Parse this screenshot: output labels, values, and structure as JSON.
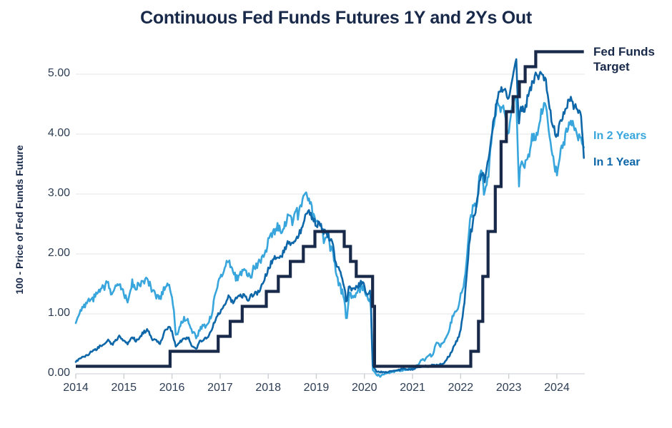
{
  "chart_data": {
    "type": "line",
    "title": "Continuous Fed Funds Futures 1Y and 2Ys Out",
    "ylabel": "100 - Price of Fed Funds Future",
    "x_ticks": [
      "2014",
      "2015",
      "2016",
      "2017",
      "2018",
      "2019",
      "2020",
      "2021",
      "2022",
      "2023",
      "2024"
    ],
    "y_ticks": [
      "0.00",
      "1.00",
      "2.00",
      "3.00",
      "4.00",
      "5.00"
    ],
    "x_range": [
      2014,
      2024.58
    ],
    "y_range": [
      0,
      5.4
    ],
    "grid": "horizontal-only",
    "legend_position": "right-outside",
    "colors": {
      "target": "#18294a",
      "in_2_years": "#38a6dc",
      "in_1_year": "#0e67a9",
      "gridline": "#e8e9ed",
      "axis": "#d4d8de",
      "tick_text": "#2d3e54"
    },
    "series": [
      {
        "name": "Fed Funds Target",
        "legend_lines": [
          "Fed Funds",
          "Target"
        ],
        "color": "#18294a",
        "style": "step",
        "points": [
          [
            2014.0,
            0.125
          ],
          [
            2015.96,
            0.375
          ],
          [
            2016.96,
            0.625
          ],
          [
            2017.21,
            0.875
          ],
          [
            2017.46,
            1.125
          ],
          [
            2017.96,
            1.375
          ],
          [
            2018.21,
            1.625
          ],
          [
            2018.46,
            1.875
          ],
          [
            2018.73,
            2.125
          ],
          [
            2018.97,
            2.375
          ],
          [
            2019.58,
            2.125
          ],
          [
            2019.71,
            1.875
          ],
          [
            2019.83,
            1.625
          ],
          [
            2020.17,
            1.125
          ],
          [
            2020.21,
            0.125
          ],
          [
            2022.21,
            0.375
          ],
          [
            2022.37,
            0.875
          ],
          [
            2022.46,
            1.625
          ],
          [
            2022.57,
            2.375
          ],
          [
            2022.72,
            3.125
          ],
          [
            2022.84,
            3.875
          ],
          [
            2022.95,
            4.375
          ],
          [
            2023.09,
            4.625
          ],
          [
            2023.22,
            4.875
          ],
          [
            2023.34,
            5.125
          ],
          [
            2023.56,
            5.375
          ],
          [
            2024.56,
            5.375
          ]
        ]
      },
      {
        "name": "In 2 Years",
        "color": "#38a6dc",
        "style": "line",
        "points": [
          [
            2014.0,
            0.82
          ],
          [
            2014.08,
            1.02
          ],
          [
            2014.17,
            1.12
          ],
          [
            2014.25,
            1.18
          ],
          [
            2014.33,
            1.22
          ],
          [
            2014.42,
            1.32
          ],
          [
            2014.5,
            1.42
          ],
          [
            2014.58,
            1.46
          ],
          [
            2014.67,
            1.55
          ],
          [
            2014.75,
            1.32
          ],
          [
            2014.83,
            1.48
          ],
          [
            2014.92,
            1.55
          ],
          [
            2015.0,
            1.35
          ],
          [
            2015.08,
            1.2
          ],
          [
            2015.17,
            1.55
          ],
          [
            2015.25,
            1.4
          ],
          [
            2015.33,
            1.48
          ],
          [
            2015.42,
            1.56
          ],
          [
            2015.5,
            1.6
          ],
          [
            2015.58,
            1.35
          ],
          [
            2015.67,
            1.28
          ],
          [
            2015.75,
            1.25
          ],
          [
            2015.83,
            1.42
          ],
          [
            2015.92,
            1.48
          ],
          [
            2016.0,
            1.3
          ],
          [
            2016.04,
            1.05
          ],
          [
            2016.08,
            0.62
          ],
          [
            2016.17,
            0.8
          ],
          [
            2016.25,
            0.95
          ],
          [
            2016.33,
            0.88
          ],
          [
            2016.42,
            0.72
          ],
          [
            2016.5,
            0.58
          ],
          [
            2016.58,
            0.75
          ],
          [
            2016.67,
            0.8
          ],
          [
            2016.75,
            0.85
          ],
          [
            2016.83,
            1.0
          ],
          [
            2016.92,
            1.42
          ],
          [
            2017.0,
            1.6
          ],
          [
            2017.08,
            1.68
          ],
          [
            2017.17,
            1.85
          ],
          [
            2017.25,
            1.8
          ],
          [
            2017.33,
            1.6
          ],
          [
            2017.42,
            1.7
          ],
          [
            2017.5,
            1.75
          ],
          [
            2017.58,
            1.62
          ],
          [
            2017.67,
            1.7
          ],
          [
            2017.75,
            1.8
          ],
          [
            2017.83,
            1.88
          ],
          [
            2017.92,
            2.02
          ],
          [
            2018.0,
            2.18
          ],
          [
            2018.08,
            2.32
          ],
          [
            2018.17,
            2.42
          ],
          [
            2018.25,
            2.45
          ],
          [
            2018.33,
            2.52
          ],
          [
            2018.42,
            2.62
          ],
          [
            2018.5,
            2.6
          ],
          [
            2018.58,
            2.65
          ],
          [
            2018.67,
            2.78
          ],
          [
            2018.75,
            2.92
          ],
          [
            2018.83,
            2.88
          ],
          [
            2018.92,
            2.68
          ],
          [
            2019.0,
            2.52
          ],
          [
            2019.08,
            2.48
          ],
          [
            2019.17,
            2.28
          ],
          [
            2019.25,
            2.28
          ],
          [
            2019.33,
            2.05
          ],
          [
            2019.42,
            1.62
          ],
          [
            2019.5,
            1.48
          ],
          [
            2019.58,
            1.18
          ],
          [
            2019.63,
            0.92
          ],
          [
            2019.67,
            1.28
          ],
          [
            2019.75,
            1.28
          ],
          [
            2019.83,
            1.38
          ],
          [
            2019.92,
            1.42
          ],
          [
            2020.0,
            1.4
          ],
          [
            2020.08,
            1.18
          ],
          [
            2020.13,
            1.28
          ],
          [
            2020.17,
            0.08
          ],
          [
            2020.25,
            -0.02
          ],
          [
            2020.33,
            -0.03
          ],
          [
            2020.42,
            0.0
          ],
          [
            2020.5,
            0.02
          ],
          [
            2020.58,
            0.03
          ],
          [
            2020.67,
            0.04
          ],
          [
            2020.75,
            0.05
          ],
          [
            2020.83,
            0.06
          ],
          [
            2020.92,
            0.08
          ],
          [
            2021.0,
            0.1
          ],
          [
            2021.17,
            0.2
          ],
          [
            2021.25,
            0.25
          ],
          [
            2021.33,
            0.3
          ],
          [
            2021.42,
            0.33
          ],
          [
            2021.5,
            0.55
          ],
          [
            2021.58,
            0.45
          ],
          [
            2021.67,
            0.6
          ],
          [
            2021.75,
            0.72
          ],
          [
            2021.83,
            0.95
          ],
          [
            2021.92,
            1.1
          ],
          [
            2022.0,
            1.3
          ],
          [
            2022.08,
            1.58
          ],
          [
            2022.17,
            2.3
          ],
          [
            2022.25,
            2.8
          ],
          [
            2022.33,
            2.92
          ],
          [
            2022.42,
            3.42
          ],
          [
            2022.5,
            3.05
          ],
          [
            2022.58,
            3.42
          ],
          [
            2022.67,
            4.1
          ],
          [
            2022.75,
            4.52
          ],
          [
            2022.83,
            4.48
          ],
          [
            2022.92,
            4.35
          ],
          [
            2023.0,
            4.05
          ],
          [
            2023.08,
            4.42
          ],
          [
            2023.15,
            4.68
          ],
          [
            2023.21,
            3.1
          ],
          [
            2023.25,
            3.5
          ],
          [
            2023.33,
            3.38
          ],
          [
            2023.42,
            3.72
          ],
          [
            2023.5,
            3.92
          ],
          [
            2023.58,
            4.05
          ],
          [
            2023.67,
            4.38
          ],
          [
            2023.75,
            4.52
          ],
          [
            2023.83,
            4.08
          ],
          [
            2023.92,
            3.55
          ],
          [
            2024.0,
            3.35
          ],
          [
            2024.08,
            3.72
          ],
          [
            2024.17,
            3.95
          ],
          [
            2024.25,
            4.28
          ],
          [
            2024.33,
            4.12
          ],
          [
            2024.42,
            4.05
          ],
          [
            2024.5,
            3.92
          ],
          [
            2024.56,
            3.78
          ]
        ]
      },
      {
        "name": "In 1 Year",
        "color": "#0e67a9",
        "style": "line",
        "points": [
          [
            2014.0,
            0.2
          ],
          [
            2014.08,
            0.26
          ],
          [
            2014.17,
            0.3
          ],
          [
            2014.25,
            0.33
          ],
          [
            2014.33,
            0.36
          ],
          [
            2014.42,
            0.4
          ],
          [
            2014.5,
            0.45
          ],
          [
            2014.58,
            0.5
          ],
          [
            2014.67,
            0.55
          ],
          [
            2014.75,
            0.48
          ],
          [
            2014.83,
            0.55
          ],
          [
            2014.92,
            0.62
          ],
          [
            2015.0,
            0.55
          ],
          [
            2015.08,
            0.5
          ],
          [
            2015.17,
            0.62
          ],
          [
            2015.25,
            0.56
          ],
          [
            2015.33,
            0.63
          ],
          [
            2015.42,
            0.7
          ],
          [
            2015.5,
            0.73
          ],
          [
            2015.58,
            0.58
          ],
          [
            2015.67,
            0.55
          ],
          [
            2015.75,
            0.52
          ],
          [
            2015.83,
            0.68
          ],
          [
            2015.92,
            0.78
          ],
          [
            2016.0,
            0.7
          ],
          [
            2016.08,
            0.45
          ],
          [
            2016.17,
            0.55
          ],
          [
            2016.25,
            0.58
          ],
          [
            2016.33,
            0.6
          ],
          [
            2016.42,
            0.48
          ],
          [
            2016.5,
            0.4
          ],
          [
            2016.58,
            0.55
          ],
          [
            2016.67,
            0.58
          ],
          [
            2016.75,
            0.62
          ],
          [
            2016.83,
            0.75
          ],
          [
            2016.92,
            0.95
          ],
          [
            2017.0,
            1.05
          ],
          [
            2017.08,
            1.12
          ],
          [
            2017.17,
            1.25
          ],
          [
            2017.25,
            1.22
          ],
          [
            2017.33,
            1.28
          ],
          [
            2017.42,
            1.3
          ],
          [
            2017.5,
            1.32
          ],
          [
            2017.58,
            1.25
          ],
          [
            2017.67,
            1.28
          ],
          [
            2017.75,
            1.35
          ],
          [
            2017.83,
            1.42
          ],
          [
            2017.92,
            1.55
          ],
          [
            2018.0,
            1.72
          ],
          [
            2018.08,
            1.85
          ],
          [
            2018.17,
            1.95
          ],
          [
            2018.25,
            2.0
          ],
          [
            2018.33,
            2.06
          ],
          [
            2018.42,
            2.15
          ],
          [
            2018.5,
            2.2
          ],
          [
            2018.58,
            2.28
          ],
          [
            2018.67,
            2.4
          ],
          [
            2018.75,
            2.55
          ],
          [
            2018.83,
            2.72
          ],
          [
            2018.92,
            2.6
          ],
          [
            2019.0,
            2.48
          ],
          [
            2019.08,
            2.45
          ],
          [
            2019.17,
            2.32
          ],
          [
            2019.25,
            2.35
          ],
          [
            2019.33,
            2.15
          ],
          [
            2019.42,
            1.85
          ],
          [
            2019.5,
            1.75
          ],
          [
            2019.58,
            1.45
          ],
          [
            2019.63,
            1.15
          ],
          [
            2019.67,
            1.45
          ],
          [
            2019.75,
            1.38
          ],
          [
            2019.83,
            1.45
          ],
          [
            2019.92,
            1.5
          ],
          [
            2020.0,
            1.45
          ],
          [
            2020.08,
            1.3
          ],
          [
            2020.13,
            1.38
          ],
          [
            2020.17,
            0.15
          ],
          [
            2020.25,
            0.04
          ],
          [
            2020.33,
            0.03
          ],
          [
            2020.42,
            0.03
          ],
          [
            2020.5,
            0.04
          ],
          [
            2020.58,
            0.05
          ],
          [
            2020.67,
            0.06
          ],
          [
            2020.75,
            0.07
          ],
          [
            2020.83,
            0.08
          ],
          [
            2020.92,
            0.08
          ],
          [
            2021.0,
            0.08
          ],
          [
            2021.17,
            0.12
          ],
          [
            2021.33,
            0.13
          ],
          [
            2021.5,
            0.15
          ],
          [
            2021.58,
            0.16
          ],
          [
            2021.67,
            0.18
          ],
          [
            2021.75,
            0.28
          ],
          [
            2021.83,
            0.4
          ],
          [
            2021.92,
            0.55
          ],
          [
            2022.0,
            0.72
          ],
          [
            2022.08,
            1.2
          ],
          [
            2022.17,
            2.05
          ],
          [
            2022.25,
            2.55
          ],
          [
            2022.33,
            2.8
          ],
          [
            2022.42,
            3.35
          ],
          [
            2022.5,
            3.2
          ],
          [
            2022.58,
            3.55
          ],
          [
            2022.67,
            4.15
          ],
          [
            2022.75,
            4.55
          ],
          [
            2022.83,
            4.72
          ],
          [
            2022.92,
            4.68
          ],
          [
            2023.0,
            4.55
          ],
          [
            2023.08,
            4.9
          ],
          [
            2023.15,
            5.3
          ],
          [
            2023.21,
            4.2
          ],
          [
            2023.25,
            4.5
          ],
          [
            2023.33,
            4.4
          ],
          [
            2023.42,
            4.7
          ],
          [
            2023.5,
            4.88
          ],
          [
            2023.58,
            4.95
          ],
          [
            2023.67,
            5.0
          ],
          [
            2023.75,
            4.92
          ],
          [
            2023.83,
            4.55
          ],
          [
            2023.92,
            4.12
          ],
          [
            2024.0,
            3.92
          ],
          [
            2024.08,
            4.25
          ],
          [
            2024.17,
            4.4
          ],
          [
            2024.25,
            4.62
          ],
          [
            2024.33,
            4.52
          ],
          [
            2024.42,
            4.45
          ],
          [
            2024.5,
            4.3
          ],
          [
            2024.56,
            3.55
          ]
        ]
      }
    ]
  }
}
